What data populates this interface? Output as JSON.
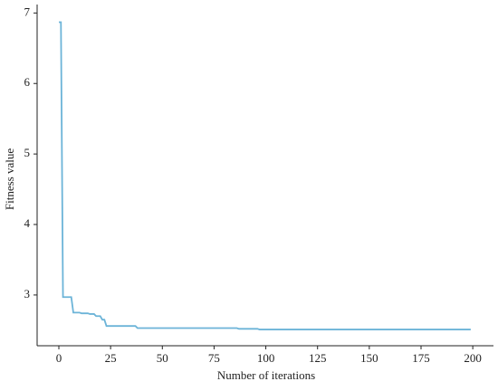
{
  "chart_data": {
    "type": "line",
    "x_label": "Number of iterations",
    "y_label": "Fitness value",
    "x": [
      0,
      1,
      2,
      6,
      7,
      10,
      11,
      14,
      15,
      17,
      18,
      20,
      21,
      22,
      23,
      37,
      38,
      86,
      87,
      96,
      97,
      199
    ],
    "series": [
      {
        "color": "#6cb4d8",
        "values": [
          6.87,
          6.87,
          2.97,
          2.97,
          2.75,
          2.75,
          2.74,
          2.74,
          2.73,
          2.73,
          2.7,
          2.7,
          2.65,
          2.65,
          2.56,
          2.56,
          2.53,
          2.53,
          2.52,
          2.52,
          2.51,
          2.51
        ]
      }
    ],
    "xlim": [
      -10.5,
      210
    ],
    "ylim": [
      2.28,
      7.12
    ],
    "xticks": [
      0,
      25,
      50,
      75,
      100,
      125,
      150,
      175,
      200
    ],
    "yticks": [
      3,
      4,
      5,
      6,
      7
    ],
    "grid": false
  }
}
